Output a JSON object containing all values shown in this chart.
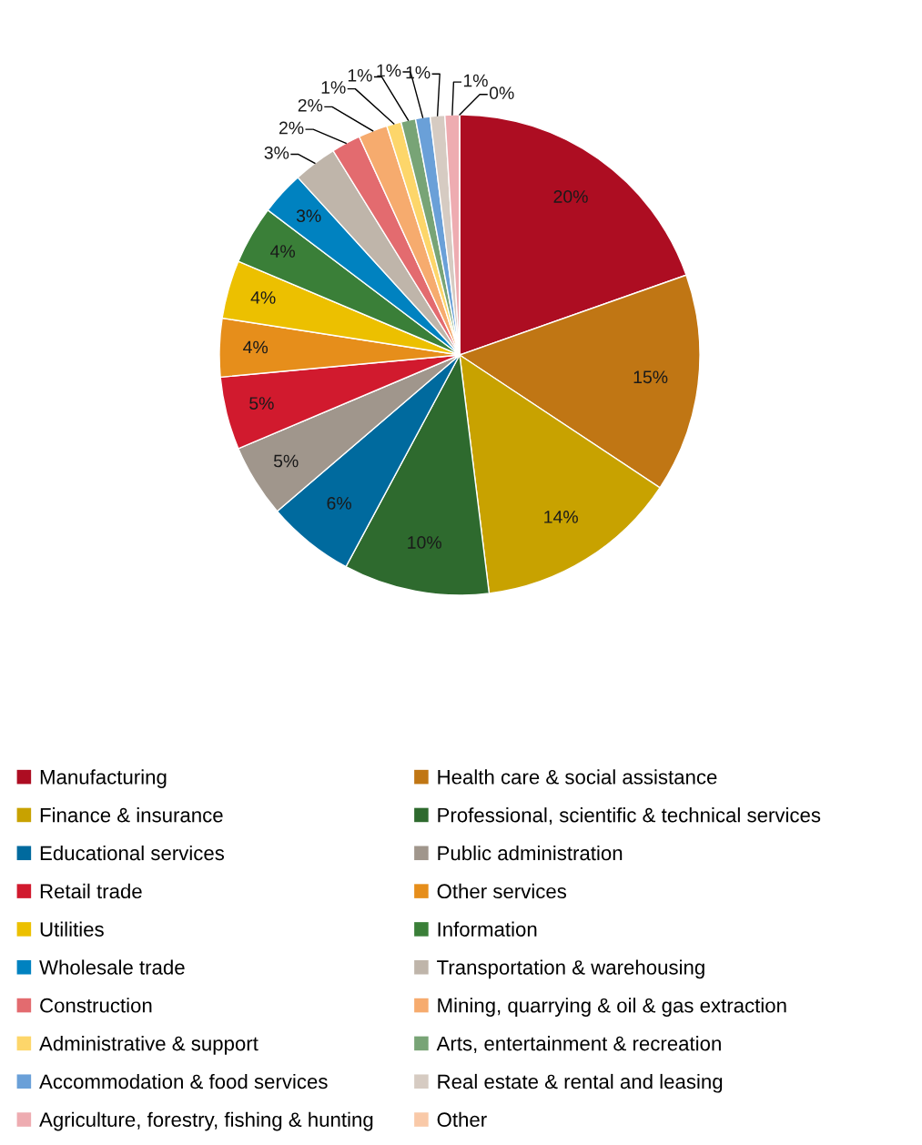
{
  "chart_data": {
    "type": "pie",
    "categories": [
      "Manufacturing",
      "Health care & social assistance",
      "Finance & insurance",
      "Professional, scientific & technical services",
      "Educational services",
      "Public administration",
      "Retail trade",
      "Other services",
      "Utilities",
      "Information",
      "Wholesale trade",
      "Transportation & warehousing",
      "Construction",
      "Mining, quarrying & oil & gas extraction",
      "Administrative & support",
      "Arts, entertainment & recreation",
      "Accommodation & food services",
      "Real estate & rental and leasing",
      "Agriculture, forestry, fishing & hunting",
      "Other"
    ],
    "values": [
      20,
      15,
      14,
      10,
      6,
      5,
      5,
      4,
      4,
      4,
      3,
      3,
      2,
      2,
      1,
      1,
      1,
      1,
      1,
      0
    ],
    "colors": [
      "#ad0d22",
      "#c07614",
      "#c8a200",
      "#2e6a2e",
      "#006a9e",
      "#a0968c",
      "#d11a2e",
      "#e68e1b",
      "#ecc000",
      "#3a7f38",
      "#0082c0",
      "#bfb5aa",
      "#e36b6f",
      "#f6ab6e",
      "#fdd66a",
      "#78a476",
      "#6aa0d8",
      "#d6cbc2",
      "#eeacb1",
      "#f9c9a8"
    ],
    "value_labels": [
      "20%",
      "15%",
      "14%",
      "10%",
      "6%",
      "5%",
      "5%",
      "4%",
      "4%",
      "4%",
      "3%",
      "3%",
      "2%",
      "2%",
      "1%",
      "1%",
      "1%",
      "1%",
      "1%",
      "0%"
    ],
    "legend": "bottom"
  }
}
